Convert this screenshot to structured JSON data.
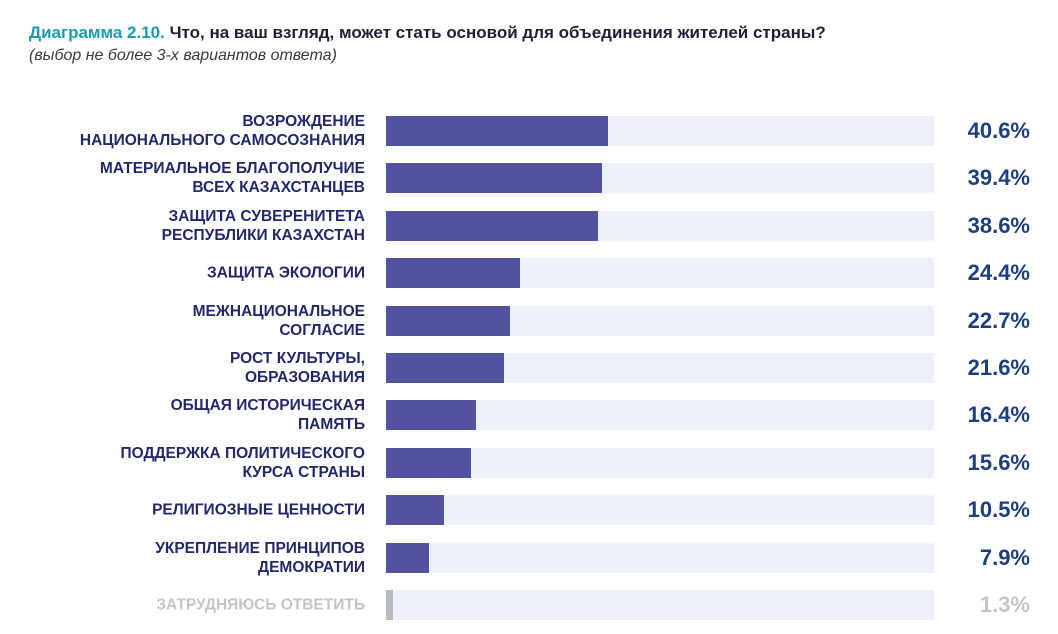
{
  "header": {
    "title_prefix": "Диаграмма 2.10.",
    "title_text": "Что, на ваш взгляд, может стать основой для объединения жителей страны?",
    "subtitle": "(выбор не более 3-х вариантов ответа)"
  },
  "chart_data": {
    "type": "bar",
    "orientation": "horizontal",
    "xlim": [
      0,
      100
    ],
    "unit": "%",
    "categories": [
      [
        "Возрождение",
        "национального самосознания"
      ],
      [
        "Материальное благополучие",
        "всех казахстанцев"
      ],
      [
        "Защита суверенитета",
        "Республики Казахстан"
      ],
      [
        "Защита экологии"
      ],
      [
        "Межнациональное",
        "согласие"
      ],
      [
        "Рост культуры,",
        "образования"
      ],
      [
        "Общая историческая",
        "память"
      ],
      [
        "Поддержка политического",
        "курса страны"
      ],
      [
        "Религиозные ценности"
      ],
      [
        "Укрепление принципов",
        "демократии"
      ],
      [
        "Затрудняюсь ответить"
      ]
    ],
    "values": [
      40.6,
      39.4,
      38.6,
      24.4,
      22.7,
      21.6,
      16.4,
      15.6,
      10.5,
      7.9,
      1.3
    ],
    "value_labels": [
      "40.6%",
      "39.4%",
      "38.6%",
      "24.4%",
      "22.7%",
      "21.6%",
      "16.4%",
      "15.6%",
      "10.5%",
      "7.9%",
      "1.3%"
    ],
    "muted": [
      false,
      false,
      false,
      false,
      false,
      false,
      false,
      false,
      false,
      false,
      true
    ],
    "colors": {
      "bar": "#5153a0",
      "track": "#eef0f8",
      "muted_bar": "#b9bbc3",
      "label": "#23286b",
      "value": "#1d3f7d",
      "accent": "#1e9bb0"
    }
  }
}
